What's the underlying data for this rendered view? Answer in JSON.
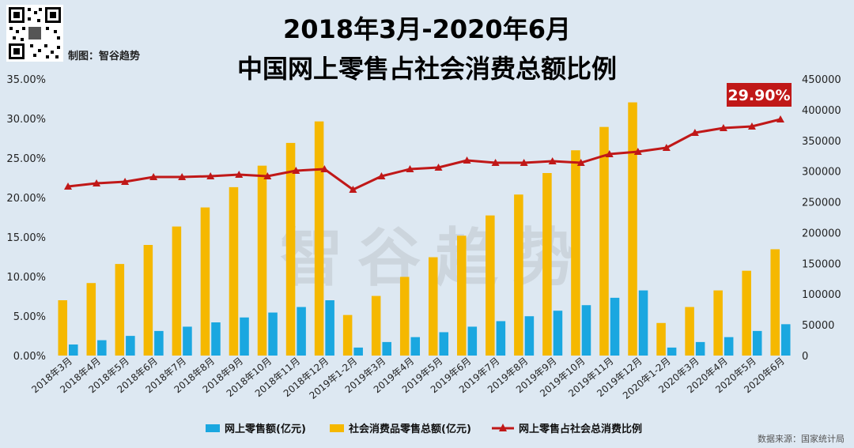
{
  "header": {
    "title_line1": "2018年3月-2020年6月",
    "title_line2": "中国网上零售占社会消费总额比例",
    "credit": "制图：智谷趋势",
    "watermark": "智谷趋势",
    "source": "数据来源：国家统计局"
  },
  "colors": {
    "online_bar": "#1aa7e0",
    "total_bar": "#f5b800",
    "ratio_line": "#c01818",
    "background": "#dde8f2"
  },
  "chart_data": {
    "type": "bar",
    "categories": [
      "2018年3月",
      "2018年4月",
      "2018年5月",
      "2018年6月",
      "2018年7月",
      "2018年8月",
      "2018年9月",
      "2018年10月",
      "2018年11月",
      "2018年12月",
      "2019年1-2月",
      "2019年3月",
      "2019年4月",
      "2019年5月",
      "2019年6月",
      "2019年7月",
      "2019年8月",
      "2019年9月",
      "2019年10月",
      "2019年11月",
      "2019年12月",
      "2020年1-2月",
      "2020年3月",
      "2020年4月",
      "2020年5月",
      "2020年6月"
    ],
    "series": [
      {
        "name": "网上零售额(亿元)",
        "axis": "right",
        "type": "bar",
        "values": [
          18000,
          25000,
          32000,
          40000,
          47000,
          54000,
          62000,
          70000,
          79000,
          90000,
          13000,
          22000,
          30000,
          38000,
          47000,
          56000,
          64000,
          73000,
          82000,
          94000,
          106000,
          13000,
          22000,
          30000,
          40000,
          51000
        ]
      },
      {
        "name": "社会消费品零售总额(亿元)",
        "axis": "right",
        "type": "bar",
        "values": [
          90000,
          118000,
          149000,
          180000,
          210000,
          241000,
          274000,
          309000,
          346000,
          381000,
          66000,
          97000,
          128000,
          160000,
          195000,
          228000,
          262000,
          297000,
          334000,
          372000,
          412000,
          53000,
          79000,
          106000,
          138000,
          173000
        ]
      },
      {
        "name": "网上零售占社会总消费比例",
        "axis": "left",
        "type": "line",
        "values": [
          21.4,
          21.8,
          22.0,
          22.6,
          22.6,
          22.7,
          22.9,
          22.7,
          23.4,
          23.6,
          21.0,
          22.7,
          23.6,
          23.8,
          24.7,
          24.4,
          24.4,
          24.6,
          24.4,
          25.5,
          25.8,
          26.3,
          28.2,
          28.8,
          29.0,
          29.9
        ]
      }
    ],
    "y_left": {
      "ticks": [
        "0.00%",
        "5.00%",
        "10.00%",
        "15.00%",
        "20.00%",
        "25.00%",
        "30.00%",
        "35.00%"
      ],
      "range": [
        0,
        35
      ]
    },
    "y_right": {
      "ticks": [
        "0",
        "50000",
        "100000",
        "150000",
        "200000",
        "250000",
        "300000",
        "350000",
        "400000",
        "450000"
      ],
      "range": [
        0,
        450000
      ]
    },
    "callout": "29.90%",
    "legend_position": "bottom"
  }
}
